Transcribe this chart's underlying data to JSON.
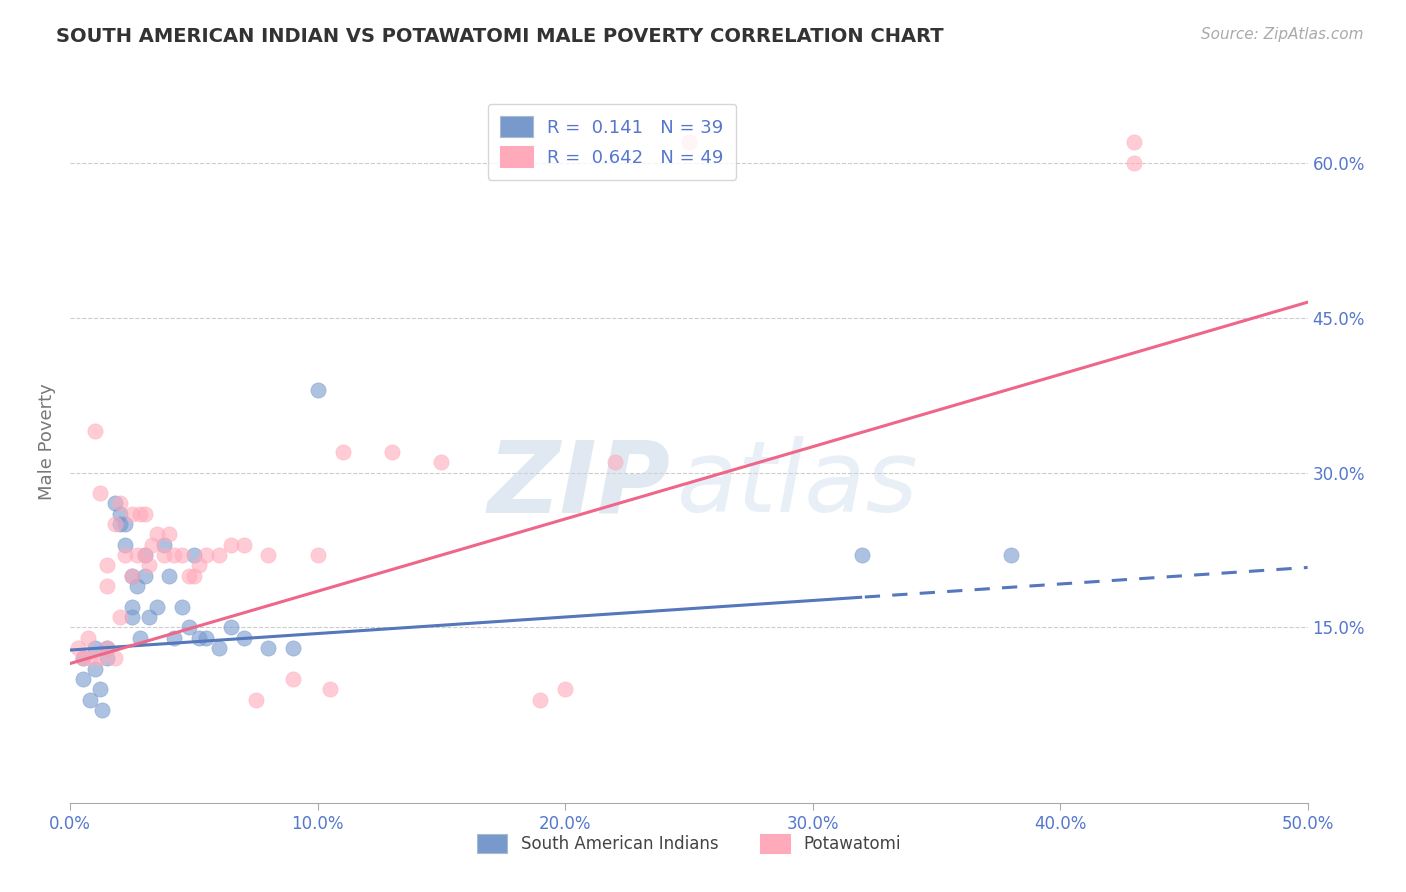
{
  "title": "SOUTH AMERICAN INDIAN VS POTAWATOMI MALE POVERTY CORRELATION CHART",
  "source_text": "Source: ZipAtlas.com",
  "ylabel": "Male Poverty",
  "watermark_zip": "ZIP",
  "watermark_atlas": "atlas",
  "xlim": [
    0.0,
    0.5
  ],
  "ylim": [
    -0.02,
    0.68
  ],
  "xticks": [
    0.0,
    0.1,
    0.2,
    0.3,
    0.4,
    0.5
  ],
  "xtick_labels": [
    "0.0%",
    "10.0%",
    "20.0%",
    "30.0%",
    "40.0%",
    "50.0%"
  ],
  "yticks": [
    0.15,
    0.3,
    0.45,
    0.6
  ],
  "ytick_labels": [
    "15.0%",
    "30.0%",
    "45.0%",
    "60.0%"
  ],
  "blue_R": 0.141,
  "blue_N": 39,
  "pink_R": 0.642,
  "pink_N": 49,
  "blue_color": "#7799cc",
  "pink_color": "#ffaabb",
  "blue_line_color": "#5577bb",
  "pink_line_color": "#ee6688",
  "blue_label": "South American Indians",
  "pink_label": "Potawatomi",
  "blue_scatter_x": [
    0.005,
    0.005,
    0.008,
    0.01,
    0.01,
    0.012,
    0.013,
    0.015,
    0.015,
    0.018,
    0.02,
    0.02,
    0.022,
    0.022,
    0.025,
    0.025,
    0.025,
    0.027,
    0.028,
    0.03,
    0.03,
    0.032,
    0.035,
    0.038,
    0.04,
    0.042,
    0.045,
    0.048,
    0.05,
    0.052,
    0.055,
    0.06,
    0.065,
    0.07,
    0.08,
    0.09,
    0.1,
    0.32,
    0.38
  ],
  "blue_scatter_y": [
    0.12,
    0.1,
    0.08,
    0.13,
    0.11,
    0.09,
    0.07,
    0.13,
    0.12,
    0.27,
    0.26,
    0.25,
    0.25,
    0.23,
    0.2,
    0.17,
    0.16,
    0.19,
    0.14,
    0.22,
    0.2,
    0.16,
    0.17,
    0.23,
    0.2,
    0.14,
    0.17,
    0.15,
    0.22,
    0.14,
    0.14,
    0.13,
    0.15,
    0.14,
    0.13,
    0.13,
    0.38,
    0.22,
    0.22
  ],
  "pink_scatter_x": [
    0.003,
    0.005,
    0.007,
    0.008,
    0.01,
    0.012,
    0.012,
    0.015,
    0.015,
    0.015,
    0.018,
    0.018,
    0.02,
    0.02,
    0.022,
    0.025,
    0.025,
    0.027,
    0.028,
    0.03,
    0.03,
    0.032,
    0.033,
    0.035,
    0.038,
    0.04,
    0.042,
    0.045,
    0.048,
    0.05,
    0.052,
    0.055,
    0.06,
    0.065,
    0.07,
    0.075,
    0.08,
    0.09,
    0.1,
    0.105,
    0.11,
    0.13,
    0.15,
    0.19,
    0.2,
    0.22,
    0.25,
    0.43,
    0.43
  ],
  "pink_scatter_y": [
    0.13,
    0.12,
    0.14,
    0.12,
    0.34,
    0.12,
    0.28,
    0.13,
    0.21,
    0.19,
    0.12,
    0.25,
    0.27,
    0.16,
    0.22,
    0.26,
    0.2,
    0.22,
    0.26,
    0.22,
    0.26,
    0.21,
    0.23,
    0.24,
    0.22,
    0.24,
    0.22,
    0.22,
    0.2,
    0.2,
    0.21,
    0.22,
    0.22,
    0.23,
    0.23,
    0.08,
    0.22,
    0.1,
    0.22,
    0.09,
    0.32,
    0.32,
    0.31,
    0.08,
    0.09,
    0.31,
    0.62,
    0.6,
    0.62
  ],
  "background_color": "#ffffff",
  "grid_color": "#cccccc",
  "title_color": "#333333",
  "axis_label_color": "#777777",
  "tick_label_color": "#5577cc"
}
